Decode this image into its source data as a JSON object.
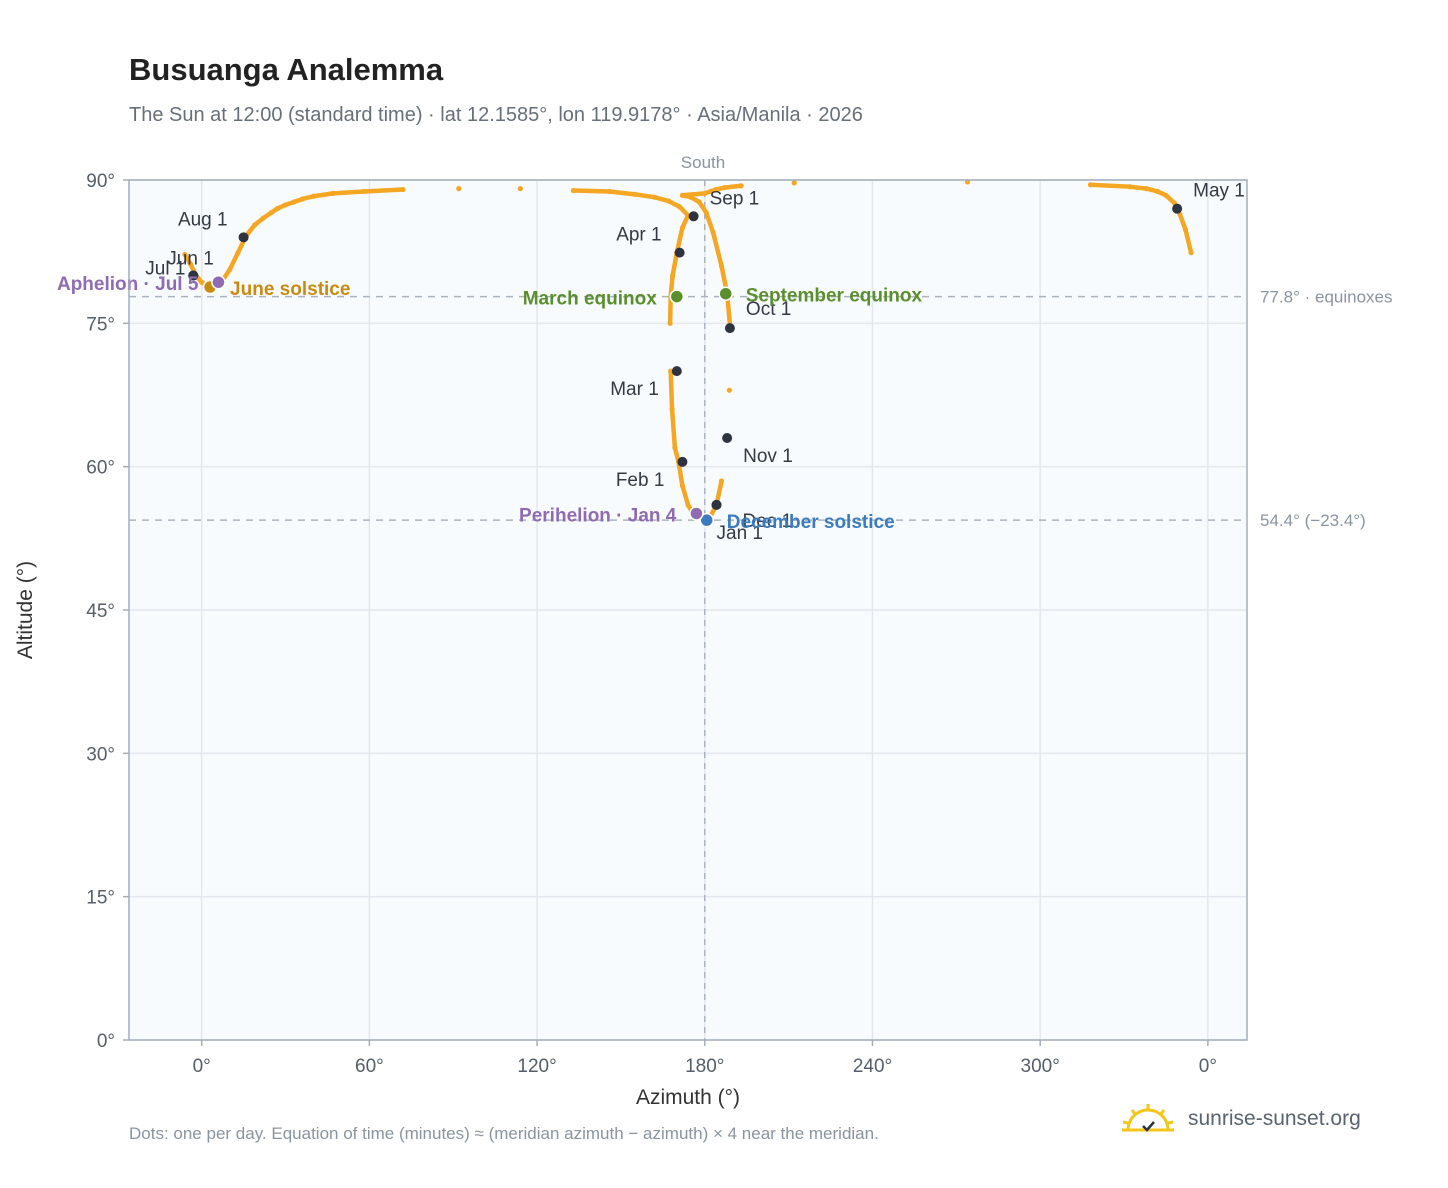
{
  "header": {
    "title": "Busuanga Analemma",
    "subtitle": "The Sun at 12:00 (standard time) · lat 12.1585°, lon 119.9178° · Asia/Manila · 2026"
  },
  "footer": {
    "note": "Dots: one per day. Equation of time (minutes) ≈ (meridian azimuth − azimuth) × 4 near the meridian.",
    "brand": "sunrise-sunset.org"
  },
  "colors": {
    "curve": "#f5a623",
    "marker": "#2d3440",
    "equinox": "#5a8f2e",
    "june_solstice": "#c98a10",
    "december_solstice": "#3b7bbf",
    "apsis": "#8e6bb3",
    "reference": "#aab4bf",
    "plot_bg": "#f8fbfd",
    "grid": "#e3e8ee"
  },
  "chart_data": {
    "type": "scatter",
    "title": "Busuanga Analemma",
    "xlabel": "Azimuth (°)",
    "ylabel": "Altitude (°)",
    "x_ticks": [
      "0°",
      "60°",
      "120°",
      "180°",
      "240°",
      "300°",
      "0°"
    ],
    "x_tick_values": [
      0,
      60,
      120,
      180,
      240,
      300,
      360
    ],
    "y_ticks": [
      "0°",
      "15°",
      "30°",
      "45°",
      "60°",
      "75°",
      "90°"
    ],
    "y_tick_values": [
      0,
      15,
      30,
      45,
      60,
      75,
      90
    ],
    "xlim": [
      -26,
      374
    ],
    "ylim": [
      0,
      90
    ],
    "grid": true,
    "meridian": {
      "azimuth": 180,
      "label": "South"
    },
    "reference_lines": [
      {
        "altitude": 77.8,
        "label": "77.8° · equinoxes"
      },
      {
        "altitude": 54.4,
        "label": "54.4° (−23.4°)"
      }
    ],
    "curve_points": [
      [
        -6,
        82.2
      ],
      [
        -4,
        81.2
      ],
      [
        -2,
        80.0
      ],
      [
        0,
        79.3
      ],
      [
        3,
        78.8
      ],
      [
        5,
        78.8
      ],
      [
        7,
        79.3
      ],
      [
        10,
        80.6
      ],
      [
        13,
        82.4
      ],
      [
        16,
        84.2
      ],
      [
        19,
        85.3
      ],
      [
        22,
        86.0
      ],
      [
        25,
        86.6
      ],
      [
        27,
        87.0
      ],
      [
        30,
        87.4
      ],
      [
        33,
        87.7
      ],
      [
        36,
        88.0
      ],
      [
        40,
        88.3
      ],
      [
        47,
        88.6
      ],
      [
        58,
        88.8
      ],
      [
        72,
        89.0
      ],
      [
        92,
        89.1
      ],
      [
        114,
        89.1
      ],
      [
        133,
        88.9
      ],
      [
        146,
        88.8
      ],
      [
        155,
        88.5
      ],
      [
        162,
        88.2
      ],
      [
        167,
        87.8
      ],
      [
        171,
        87.2
      ],
      [
        174,
        86.3
      ],
      [
        172,
        85.0
      ],
      [
        170,
        82.4
      ],
      [
        168.5,
        80.0
      ],
      [
        167.8,
        77.8
      ],
      [
        167.6,
        75.0
      ],
      [
        167.8,
        70.0
      ],
      [
        168.3,
        66.0
      ],
      [
        169.3,
        62.0
      ],
      [
        170.6,
        60.5
      ],
      [
        172.0,
        58.0
      ],
      [
        174.0,
        56.0
      ],
      [
        176.0,
        55.0
      ],
      [
        179.0,
        54.6
      ],
      [
        180.7,
        54.4
      ],
      [
        182.0,
        54.8
      ],
      [
        184.2,
        56.0
      ],
      [
        186.0,
        58.5
      ],
      [
        187.8,
        63.0
      ],
      [
        188.8,
        68.0
      ],
      [
        189.1,
        74.5
      ],
      [
        188.0,
        78.1
      ],
      [
        186.0,
        81.0
      ],
      [
        183.0,
        84.5
      ],
      [
        180.5,
        86.6
      ],
      [
        178.0,
        87.7
      ],
      [
        175.0,
        88.2
      ],
      [
        172,
        88.4
      ],
      [
        180,
        88.6
      ],
      [
        182,
        88.8
      ],
      [
        184,
        89.0
      ],
      [
        187,
        89.2
      ],
      [
        193,
        89.4
      ],
      [
        212,
        89.7
      ],
      [
        274,
        89.8
      ],
      [
        318,
        89.5
      ],
      [
        332,
        89.3
      ],
      [
        338,
        89.1
      ],
      [
        342,
        88.8
      ],
      [
        345,
        88.4
      ],
      [
        348,
        87.6
      ],
      [
        350,
        86.4
      ],
      [
        352,
        84.8
      ],
      [
        354,
        82.4
      ]
    ],
    "month_markers": [
      {
        "label": "Jan 1",
        "azimuth": 184.2,
        "altitude": 56.0
      },
      {
        "label": "Feb 1",
        "azimuth": 172.0,
        "altitude": 60.5
      },
      {
        "label": "Mar 1",
        "azimuth": 170.0,
        "altitude": 70.0
      },
      {
        "label": "Apr 1",
        "azimuth": 171.0,
        "altitude": 82.4
      },
      {
        "label": "May 1",
        "azimuth": 349.0,
        "altitude": 87.0
      },
      {
        "label": "Jun 1",
        "azimuth": -3.0,
        "altitude": 80.0
      },
      {
        "label": "Jul 1",
        "azimuth": -3.0,
        "altitude": 80.0
      },
      {
        "label": "Aug 1",
        "azimuth": 15.0,
        "altitude": 84.0
      },
      {
        "label": "Sep 1",
        "azimuth": 176.0,
        "altitude": 86.2
      },
      {
        "label": "Oct 1",
        "azimuth": 189.0,
        "altitude": 74.5
      },
      {
        "label": "Nov 1",
        "azimuth": 188.0,
        "altitude": 63.0
      },
      {
        "label": "Dec 1",
        "azimuth": 184.2,
        "altitude": 56.0
      }
    ],
    "events": [
      {
        "label": "March equinox",
        "azimuth": 170.0,
        "altitude": 77.8,
        "kind": "equinox"
      },
      {
        "label": "September equinox",
        "azimuth": 187.5,
        "altitude": 78.1,
        "kind": "equinox"
      },
      {
        "label": "June solstice",
        "azimuth": 3.0,
        "altitude": 78.8,
        "kind": "june_solstice"
      },
      {
        "label": "December solstice",
        "azimuth": 180.7,
        "altitude": 54.4,
        "kind": "december_solstice"
      },
      {
        "label": "Aphelion · Jul 5",
        "azimuth": 6.0,
        "altitude": 79.3,
        "kind": "apsis"
      },
      {
        "label": "Perihelion · Jan 4",
        "azimuth": 177.0,
        "altitude": 55.1,
        "kind": "apsis"
      }
    ]
  }
}
